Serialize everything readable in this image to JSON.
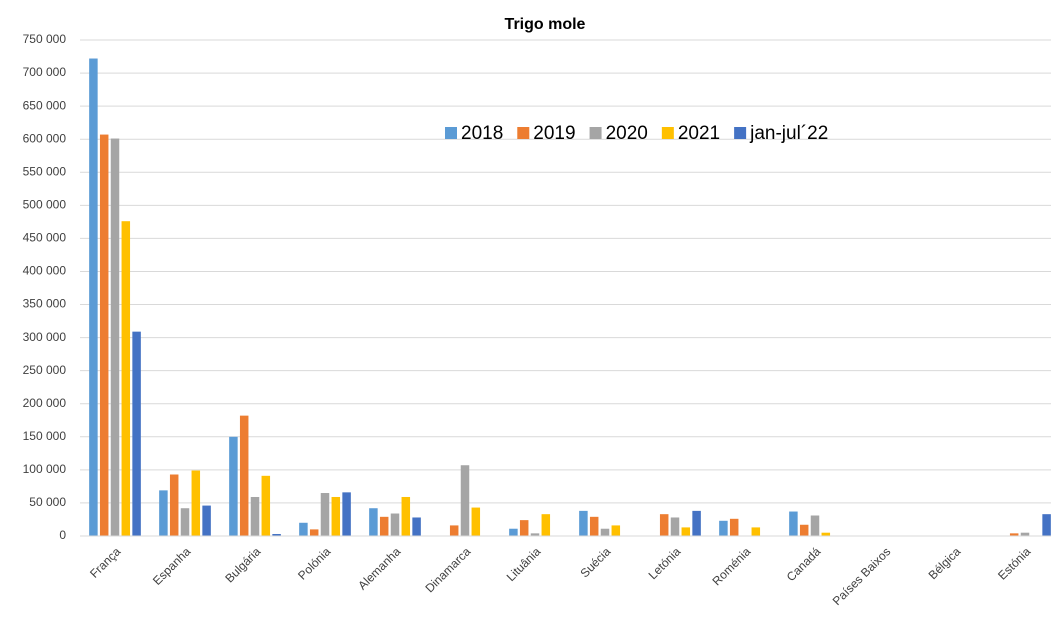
{
  "chart_data": {
    "type": "bar",
    "title": "Trigo mole",
    "categories": [
      "França",
      "Espanha",
      "Bulgária",
      "Polónia",
      "Alemanha",
      "Dinamarca",
      "Lituânia",
      "Suécia",
      "Letónia",
      "Roménia",
      "Canadá",
      "Países Baixos",
      "Bélgica",
      "Estónia"
    ],
    "series": [
      {
        "name": "2018",
        "color": "#5b9bd5",
        "values": [
          722000,
          69000,
          150000,
          20000,
          42000,
          null,
          11000,
          38000,
          null,
          23000,
          37000,
          null,
          null,
          null
        ]
      },
      {
        "name": "2019",
        "color": "#ed7d31",
        "values": [
          607000,
          93000,
          182000,
          10000,
          29000,
          16000,
          24000,
          29000,
          33000,
          26000,
          17000,
          null,
          null,
          4000
        ]
      },
      {
        "name": "2020",
        "color": "#a5a5a5",
        "values": [
          601000,
          42000,
          59000,
          65000,
          34000,
          107000,
          4000,
          11000,
          28000,
          null,
          31000,
          null,
          null,
          5000
        ]
      },
      {
        "name": "2021",
        "color": "#ffc000",
        "values": [
          476000,
          99000,
          91000,
          59000,
          59000,
          43000,
          33000,
          16000,
          13000,
          13000,
          5000,
          null,
          null,
          null
        ]
      },
      {
        "name": "jan-jul´22",
        "color": "#4472c4",
        "values": [
          309000,
          46000,
          3000,
          66000,
          28000,
          null,
          null,
          null,
          38000,
          null,
          null,
          null,
          null,
          33000
        ]
      }
    ],
    "ylim": [
      0,
      750000
    ],
    "yticks": [
      0,
      {
        "value": 50000,
        "label": "50 000"
      },
      {
        "value": 100000,
        "label": "100 000"
      },
      {
        "value": 150000,
        "label": "150 000"
      },
      {
        "value": 200000,
        "label": "200 000"
      },
      {
        "value": 250000,
        "label": "250 000"
      },
      {
        "value": 300000,
        "label": "300 000"
      },
      {
        "value": 350000,
        "label": "350 000"
      },
      {
        "value": 400000,
        "label": "400 000"
      },
      {
        "value": 450000,
        "label": "450 000"
      },
      {
        "value": 500000,
        "label": "500 000"
      },
      {
        "value": 550000,
        "label": "550 000"
      },
      {
        "value": 600000,
        "label": "600 000"
      },
      {
        "value": 650000,
        "label": "650 000"
      },
      {
        "value": 700000,
        "label": "700 000"
      },
      {
        "value": 750000,
        "label": "750 000"
      }
    ],
    "grid": true
  }
}
